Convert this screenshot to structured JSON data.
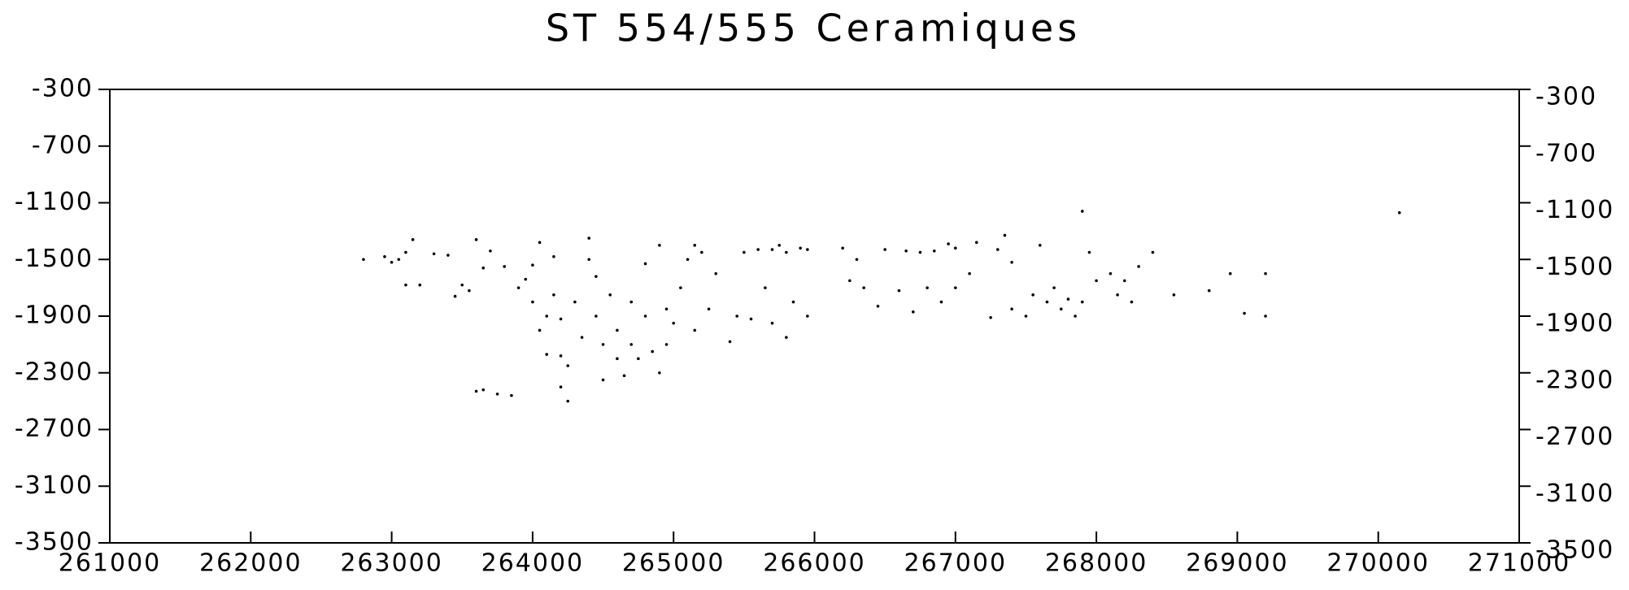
{
  "chart_data": {
    "type": "scatter",
    "title": "ST 554/555 Ceramiques",
    "color": "#000000",
    "xlim": [
      261000,
      271000
    ],
    "xticks": [
      261000,
      262000,
      263000,
      264000,
      265000,
      266000,
      267000,
      268000,
      269000,
      270000,
      271000
    ],
    "ylim": [
      -3500,
      -300
    ],
    "yticks": [
      -3500,
      -3100,
      -2700,
      -2300,
      -1900,
      -1500,
      -1100,
      -700,
      -300
    ],
    "y2lim": [
      -3500,
      -300
    ],
    "y2ticks": [
      -3500,
      -3100,
      -2700,
      -2300,
      -1900,
      -1500,
      -1100,
      -700,
      -300
    ],
    "x": [
      262800,
      262950,
      263000,
      263050,
      263100,
      263100,
      263150,
      263200,
      263300,
      263400,
      263450,
      263500,
      263550,
      263600,
      263700,
      263650,
      263600,
      263650,
      263750,
      263850,
      263800,
      263900,
      263950,
      264000,
      264050,
      264000,
      264100,
      264050,
      264150,
      264150,
      264200,
      264100,
      264200,
      264250,
      264200,
      264250,
      264300,
      264350,
      264400,
      264400,
      264450,
      264450,
      264500,
      264500,
      264550,
      264600,
      264600,
      264650,
      264700,
      264700,
      264750,
      264800,
      264800,
      264850,
      264900,
      264900,
      264950,
      264950,
      265000,
      265050,
      265100,
      265150,
      265150,
      265200,
      265250,
      265300,
      265400,
      265450,
      265500,
      265550,
      265600,
      265650,
      265700,
      265750,
      265800,
      265850,
      265900,
      265950,
      265950,
      265800,
      265700,
      266200,
      266250,
      266300,
      266350,
      266450,
      266500,
      266600,
      266650,
      266750,
      266800,
      266850,
      266700,
      266950,
      266900,
      267000,
      267150,
      267000,
      267100,
      267250,
      267300,
      267400,
      267350,
      267400,
      267500,
      267550,
      267600,
      267650,
      267700,
      267750,
      267800,
      267850,
      267900,
      267950,
      267900,
      268000,
      268100,
      268150,
      268200,
      268250,
      268300,
      268400,
      268550,
      268800,
      268950,
      269050,
      269200,
      269200,
      270150
    ],
    "values": [
      -1500,
      -1480,
      -1520,
      -1500,
      -1450,
      -1680,
      -1360,
      -1680,
      -1460,
      -1470,
      -1760,
      -1680,
      -1720,
      -1360,
      -1440,
      -1560,
      -2430,
      -2420,
      -2450,
      -2460,
      -1550,
      -1700,
      -1640,
      -1540,
      -1380,
      -1800,
      -1900,
      -2000,
      -1480,
      -1750,
      -1920,
      -2170,
      -2180,
      -2250,
      -2400,
      -2500,
      -1800,
      -2050,
      -1350,
      -1500,
      -1620,
      -1900,
      -2100,
      -2350,
      -1750,
      -2000,
      -2200,
      -2320,
      -1800,
      -2100,
      -2200,
      -1530,
      -1900,
      -2150,
      -1400,
      -2300,
      -1850,
      -2100,
      -1950,
      -1700,
      -1500,
      -1400,
      -2000,
      -1450,
      -1850,
      -1600,
      -2080,
      -1900,
      -1450,
      -1920,
      -1430,
      -1700,
      -1430,
      -1400,
      -1450,
      -1800,
      -1420,
      -1430,
      -1900,
      -2050,
      -1950,
      -1420,
      -1650,
      -1500,
      -1700,
      -1830,
      -1430,
      -1720,
      -1440,
      -1450,
      -1700,
      -1440,
      -1870,
      -1390,
      -1800,
      -1420,
      -1380,
      -1700,
      -1600,
      -1910,
      -1430,
      -1520,
      -1330,
      -1850,
      -1900,
      -1750,
      -1400,
      -1800,
      -1700,
      -1850,
      -1780,
      -1900,
      -1160,
      -1450,
      -1800,
      -1650,
      -1600,
      -1750,
      -1650,
      -1800,
      -1550,
      -1450,
      -1750,
      -1720,
      -1600,
      -1880,
      -1600,
      -1900,
      -1170
    ]
  }
}
